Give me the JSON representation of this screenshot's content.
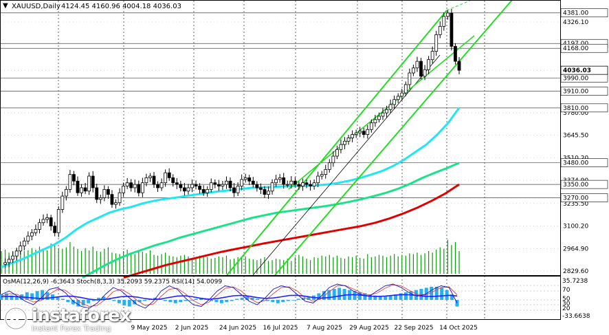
{
  "header": {
    "symbol": "XAUUSD,Daily",
    "ohlc": "4124.45 4160.96 4004.18 4036.03"
  },
  "colors": {
    "background": "#ffffff",
    "candles": "#000000",
    "volume": "#00a000",
    "ma_fast": "#1ee6f5",
    "ma_mid": "#19e38a",
    "ma_slow": "#e00000",
    "channel": "#22dd22",
    "trend": "#000000",
    "macd_hist": "#29aef0",
    "stoch_main": "#1010c0",
    "stoch_signal": "#e04040",
    "rsi": "#2020ff",
    "price_label_bg": "#ffffff"
  },
  "indicators": {
    "label": "OsMA(12,26,9) -6.3643  Stoch(8,3,3) 35.2093 59.2375  RSI(14) 54.0099",
    "axis_top": "35.7238",
    "axis_bottom": "-33.6638",
    "level_70": "70",
    "level_50": "50",
    "level_30": "30",
    "level_20": "20"
  },
  "chart_data": {
    "type": "candlestick",
    "title": "XAUUSD,Daily",
    "last_price": 4036.03,
    "ylim": [
      2790,
      4405
    ],
    "price_axis_ticks": [
      "4326.10",
      "4036.03",
      "3780.00",
      "3645.50",
      "3510.20",
      "3374.90",
      "3235.50",
      "3100.20",
      "2964.90",
      "2829.60"
    ],
    "level_labels": [
      "4381.00",
      "4197.00",
      "4168.00",
      "3990.00",
      "3910.00",
      "3810.00",
      "3480.00",
      "3350.00",
      "3270.00"
    ],
    "level_values": [
      4381,
      4197,
      4168,
      3990,
      3910,
      3810,
      3480,
      3350,
      3270
    ],
    "x_tick_labels": [
      "9 May 2025",
      "2 Jun 2025",
      "24 Jun 2025",
      "16 Jul 2025",
      "7 Aug 2025",
      "29 Aug 2025",
      "22 Sep 2025",
      "14 Oct 2025"
    ],
    "close_path": [
      2870,
      2880,
      2900,
      2920,
      2950,
      2980,
      3010,
      3040,
      3060,
      3080,
      3120,
      3140,
      3150,
      3100,
      3060,
      3200,
      3280,
      3320,
      3410,
      3370,
      3300,
      3330,
      3310,
      3400,
      3330,
      3260,
      3270,
      3320,
      3290,
      3230,
      3240,
      3300,
      3340,
      3360,
      3330,
      3350,
      3300,
      3360,
      3390,
      3400,
      3350,
      3330,
      3360,
      3420,
      3390,
      3360,
      3350,
      3330,
      3310,
      3330,
      3350,
      3340,
      3320,
      3300,
      3320,
      3360,
      3350,
      3340,
      3350,
      3370,
      3330,
      3300,
      3340,
      3380,
      3390,
      3370,
      3350,
      3330,
      3320,
      3290,
      3310,
      3360,
      3380,
      3390,
      3350,
      3350,
      3370,
      3350,
      3340,
      3360,
      3350,
      3340,
      3360,
      3400,
      3410,
      3440,
      3480,
      3520,
      3560,
      3590,
      3610,
      3630,
      3650,
      3660,
      3670,
      3650,
      3680,
      3720,
      3740,
      3760,
      3780,
      3800,
      3830,
      3860,
      3880,
      3900,
      3950,
      4020,
      4050,
      4090,
      4000,
      4040,
      4100,
      4150,
      4250,
      4300,
      4360,
      4380,
      4180,
      4090,
      4036
    ],
    "volume": [
      30,
      32,
      28,
      30,
      33,
      35,
      30,
      31,
      34,
      32,
      36,
      33,
      31,
      40,
      38,
      34,
      33,
      35,
      42,
      36,
      33,
      30,
      34,
      31,
      36,
      30,
      29,
      33,
      35,
      28,
      27,
      26,
      30,
      32,
      28,
      26,
      30,
      29,
      27,
      31,
      25,
      24,
      26,
      28,
      24,
      23,
      22,
      24,
      25,
      23,
      21,
      22,
      24,
      23,
      22,
      20,
      21,
      23,
      22,
      24,
      19,
      20,
      22,
      21,
      23,
      20,
      19,
      18,
      20,
      22,
      17,
      18,
      20,
      19,
      18,
      20,
      17,
      22,
      25,
      23,
      20,
      18,
      22,
      21,
      24,
      23,
      25,
      22,
      24,
      21,
      20,
      23,
      22,
      24,
      21,
      20,
      26,
      22,
      23,
      25,
      24,
      22,
      24,
      26,
      23,
      25,
      24,
      27,
      26,
      28,
      25,
      27,
      30,
      28,
      32,
      35,
      33,
      45,
      38,
      42,
      30
    ],
    "series": [
      {
        "name": "MA fast",
        "values": [
          2850,
          2875,
          2900,
          2930,
          2960,
          2990,
          3030,
          3080,
          3120,
          3150,
          3180,
          3200,
          3215,
          3235,
          3250,
          3262,
          3270,
          3280,
          3290,
          3300,
          3308,
          3315,
          3322,
          3330,
          3332,
          3335,
          3338,
          3340,
          3342,
          3345,
          3350,
          3360,
          3373,
          3390,
          3410,
          3432,
          3462,
          3500,
          3545,
          3590,
          3650,
          3720,
          3810
        ]
      },
      {
        "name": "MA mid",
        "values": [
          2790,
          2830,
          2870,
          2905,
          2935,
          2960,
          2985,
          3005,
          3030,
          3050,
          3070,
          3090,
          3110,
          3130,
          3150,
          3165,
          3180,
          3190,
          3200,
          3210,
          3220,
          3232,
          3246,
          3262,
          3280,
          3300,
          3325,
          3355,
          3390,
          3420,
          3448,
          3480
        ]
      },
      {
        "name": "MA slow",
        "values": [
          2790,
          2815,
          2840,
          2865,
          2885,
          2905,
          2925,
          2945,
          2962,
          2978,
          2995,
          3010,
          3025,
          3040,
          3055,
          3070,
          3085,
          3100,
          3120,
          3145,
          3175,
          3210,
          3250,
          3295,
          3350
        ]
      }
    ],
    "osma_hist": [
      5,
      6,
      4,
      3,
      5,
      7,
      6,
      8,
      9,
      7,
      5,
      3,
      1,
      -2,
      -4,
      -6,
      -5,
      -3,
      -1,
      2,
      3,
      1,
      -1,
      -3,
      -5,
      -6,
      -4,
      -2,
      -1,
      1,
      2,
      1,
      -1,
      -2,
      -3,
      -2,
      -1,
      0,
      1,
      2,
      1,
      -1,
      -2,
      -3,
      -2,
      -1,
      1,
      2,
      3,
      2,
      1,
      0,
      -1,
      -2,
      -3,
      -2,
      -1,
      0,
      1,
      2,
      3,
      4,
      6,
      8,
      9,
      10,
      11,
      10,
      9,
      8,
      7,
      6,
      5,
      4,
      3,
      3,
      4,
      5,
      6,
      7,
      8,
      9,
      10,
      11,
      12,
      12,
      11,
      9,
      5,
      -6
    ],
    "stoch_main": [
      60,
      70,
      55,
      40,
      30,
      50,
      75,
      80,
      65,
      40,
      25,
      20,
      35,
      60,
      80,
      70,
      50,
      30,
      20,
      40,
      70,
      85,
      75,
      50,
      30,
      25,
      45,
      70,
      85,
      80,
      60,
      40,
      30,
      50,
      75,
      85,
      80,
      60,
      40,
      35,
      55,
      80,
      90,
      85,
      70,
      60,
      55,
      70,
      85,
      90,
      80,
      65,
      55,
      60,
      75,
      85,
      80,
      35
    ],
    "stoch_signal": [
      55,
      62,
      60,
      48,
      38,
      42,
      60,
      75,
      72,
      55,
      35,
      25,
      28,
      45,
      68,
      75,
      62,
      42,
      28,
      32,
      55,
      75,
      78,
      62,
      42,
      30,
      38,
      58,
      78,
      82,
      70,
      50,
      36,
      42,
      62,
      80,
      82,
      70,
      50,
      40,
      48,
      68,
      85,
      86,
      76,
      65,
      58,
      64,
      78,
      88,
      85,
      72,
      60,
      58,
      68,
      80,
      82,
      59
    ]
  }
}
